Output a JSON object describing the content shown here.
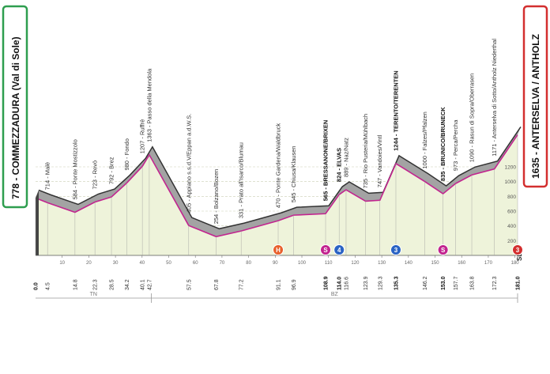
{
  "chart_data": {
    "type": "area",
    "start": "778 - COMMEZZADURA (Val di Sole)",
    "finish": "1635 - ANTERSELVA / ANTHOLZ",
    "x": [
      0,
      4.5,
      14.8,
      22.3,
      28.5,
      34.2,
      40.1,
      42.7,
      57.5,
      67.8,
      77.2,
      91.1,
      96.9,
      108.9,
      114.0,
      116.6,
      123.9,
      129.3,
      135.3,
      146.2,
      153.0,
      157.7,
      163.8,
      172.3,
      181.0
    ],
    "x_labels": [
      "0.0",
      "4.5",
      "14.8",
      "22.3",
      "28.5",
      "34.2",
      "40.1",
      "42.7",
      "57.5",
      "67.8",
      "77.2",
      "91.1",
      "96.9",
      "108.9",
      "114.0",
      "116.6",
      "123.9",
      "129.3",
      "135.3",
      "146.2",
      "153.0",
      "157.7",
      "163.8",
      "172.3",
      "181.0"
    ],
    "values": [
      778,
      714,
      584,
      723,
      792,
      980,
      1207,
      1363,
      405,
      254,
      331,
      470,
      545,
      565,
      824,
      889,
      735,
      747,
      1244,
      1000,
      835,
      973,
      1090,
      1171,
      1635
    ],
    "point_labels": [
      null,
      "714 - Malè",
      "584 - Ponte Mostizzolo",
      "723 - Revò",
      "792 - Brez",
      "980 - Fondo",
      "1207 - Ruffrè",
      "1363 - Passo della Mendola",
      "405 - Appiano s.s.d.V/Eppan a.d.W.S.",
      "254 - Bolzano/Bozen",
      "331 - Prato all'Isarco/Blumau",
      "470 - Ponte Gardena/Waldbruck",
      "545 - Chiusa/Klausen",
      "565 - BRESSANONE/BRIXEN",
      "824 - ELVAS",
      "889 - Naz/Natz",
      "735 - Rio Pusteria/Mühlbach",
      "747 - Vandoies/Vintl",
      "1244 - TERENTO/TERENTEN",
      "1000 - Falzes/Pfalzen",
      "835 - BRUNICO/BRUNECK",
      "973 - Perca/Percha",
      "1090 - Rasun di Sopra/Oberrasen",
      "1171 - Anterselva di Sotto/Antholz Niederthal",
      null
    ],
    "xlim": [
      0,
      181
    ],
    "xticks": [
      10,
      20,
      30,
      40,
      50,
      60,
      70,
      80,
      90,
      100,
      110,
      120,
      130,
      140,
      150,
      160,
      170,
      180
    ],
    "ylim": [
      0,
      1800
    ],
    "yticks": [
      200,
      400,
      600,
      800,
      1000,
      1200
    ],
    "grid": true,
    "line_color": "#c2248f",
    "fill_color": "#eef3da",
    "band_color": "#a3a3a3",
    "regions": [
      {
        "name": "TN",
        "from": 0,
        "to": 43.5
      },
      {
        "name": "BZ",
        "from": 43.5,
        "to": 181
      }
    ],
    "markers": [
      {
        "symbol": "H",
        "x": 91.1,
        "color": "#e8602c"
      },
      {
        "symbol": "S",
        "x": 108.9,
        "color": "#c2248f"
      },
      {
        "symbol": "4",
        "x": 114.0,
        "color": "#2a63c4"
      },
      {
        "symbol": "3",
        "x": 135.3,
        "color": "#2a63c4"
      },
      {
        "symbol": "S",
        "x": 153.0,
        "color": "#c2248f"
      },
      {
        "symbol": "3",
        "x": 181.0,
        "color": "#d32f2f"
      }
    ],
    "brand": "SDS"
  }
}
